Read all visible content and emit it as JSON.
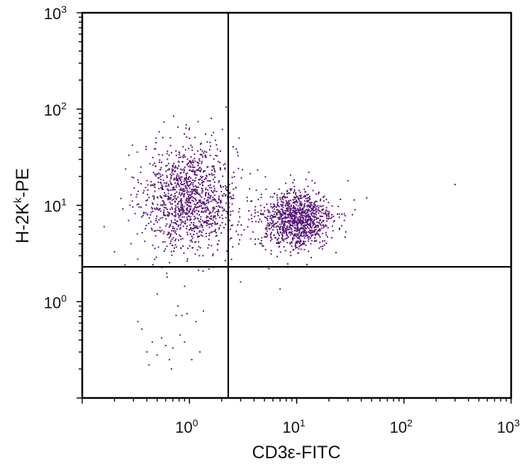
{
  "chart_data": {
    "type": "scatter",
    "title": "",
    "xlabel": "CD3ε-FITC",
    "ylabel_main": "H-2K",
    "ylabel_sup": "k",
    "ylabel_tail": "-PE",
    "x_scale": "log",
    "y_scale": "log",
    "xlim": [
      0.1,
      1000
    ],
    "ylim": [
      0.1,
      1000
    ],
    "x_ticks": [
      {
        "value": 1,
        "base": "10",
        "exp": "0"
      },
      {
        "value": 10,
        "base": "10",
        "exp": "1"
      },
      {
        "value": 100,
        "base": "10",
        "exp": "2"
      },
      {
        "value": 1000,
        "base": "10",
        "exp": "3"
      }
    ],
    "y_ticks": [
      {
        "value": 1,
        "base": "10",
        "exp": "0"
      },
      {
        "value": 10,
        "base": "10",
        "exp": "1"
      },
      {
        "value": 100,
        "base": "10",
        "exp": "2"
      },
      {
        "value": 1000,
        "base": "10",
        "exp": "3"
      }
    ],
    "quadrant_gates": {
      "x": 2.3,
      "y": 2.3
    },
    "point_color": "#5a1a7a",
    "populations": [
      {
        "count": 1200,
        "x_center": 1.0,
        "y_center": 12.0,
        "x_log_sd": 0.22,
        "y_log_sd": 0.28
      },
      {
        "count": 1100,
        "x_center": 10.0,
        "y_center": 7.0,
        "x_log_sd": 0.17,
        "y_log_sd": 0.15
      }
    ],
    "sparse_points": [
      {
        "x": 0.33,
        "y": 0.62
      },
      {
        "x": 0.36,
        "y": 0.52
      },
      {
        "x": 0.4,
        "y": 0.3
      },
      {
        "x": 0.42,
        "y": 0.22
      },
      {
        "x": 0.45,
        "y": 0.38
      },
      {
        "x": 0.5,
        "y": 0.28
      },
      {
        "x": 0.55,
        "y": 0.42
      },
      {
        "x": 0.6,
        "y": 0.35
      },
      {
        "x": 0.65,
        "y": 0.25
      },
      {
        "x": 0.68,
        "y": 0.2
      },
      {
        "x": 0.7,
        "y": 0.33
      },
      {
        "x": 0.75,
        "y": 0.72
      },
      {
        "x": 0.78,
        "y": 0.9
      },
      {
        "x": 0.82,
        "y": 0.45
      },
      {
        "x": 0.85,
        "y": 0.72
      },
      {
        "x": 0.9,
        "y": 0.38
      },
      {
        "x": 0.95,
        "y": 0.75
      },
      {
        "x": 1.05,
        "y": 0.25
      },
      {
        "x": 1.15,
        "y": 0.62
      },
      {
        "x": 1.25,
        "y": 0.3
      },
      {
        "x": 1.35,
        "y": 0.8
      },
      {
        "x": 0.5,
        "y": 1.2
      },
      {
        "x": 0.62,
        "y": 1.8
      },
      {
        "x": 0.25,
        "y": 2.4
      },
      {
        "x": 0.16,
        "y": 6.0
      },
      {
        "x": 0.2,
        "y": 3.3
      },
      {
        "x": 3.0,
        "y": 1.6
      },
      {
        "x": 7.0,
        "y": 1.35
      },
      {
        "x": 5.5,
        "y": 2.2
      },
      {
        "x": 2.2,
        "y": 105
      },
      {
        "x": 2.3,
        "y": 60
      },
      {
        "x": 2.9,
        "y": 50
      },
      {
        "x": 1.6,
        "y": 80
      },
      {
        "x": 45,
        "y": 12
      },
      {
        "x": 30,
        "y": 18
      },
      {
        "x": 300,
        "y": 16.5
      },
      {
        "x": 35,
        "y": 9
      },
      {
        "x": 0.35,
        "y": 22
      }
    ]
  }
}
